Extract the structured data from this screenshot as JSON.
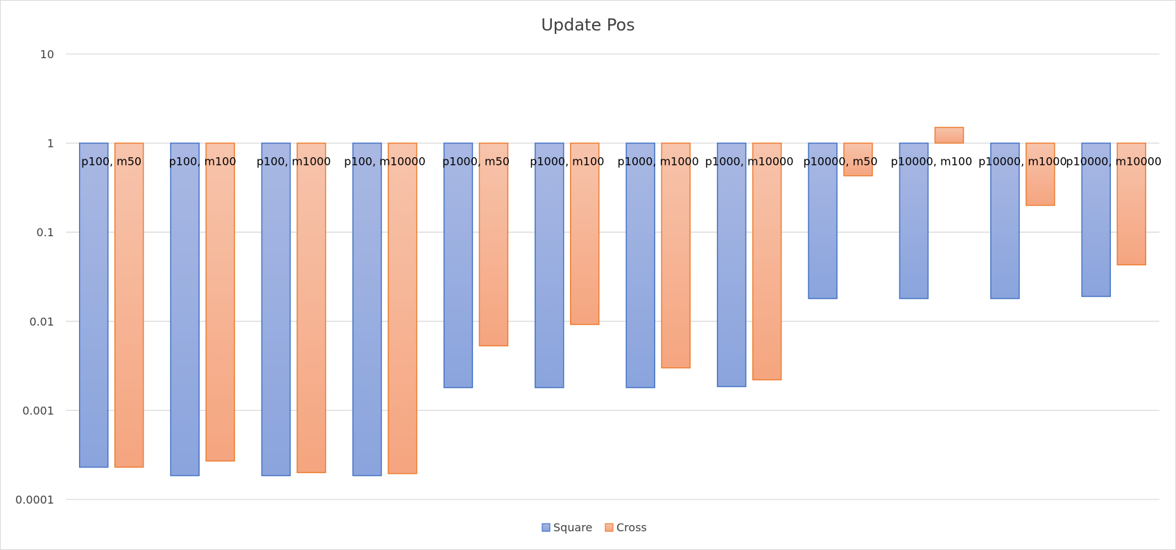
{
  "chart_data": {
    "type": "bar",
    "title": "Update Pos",
    "xlabel": "",
    "ylabel": "",
    "yscale": "log",
    "ylim": [
      0.0001,
      10
    ],
    "yticks": [
      "10",
      "1",
      "0.1",
      "0.01",
      "0.001",
      "0.0001"
    ],
    "grid": true,
    "legend_position": "bottom",
    "categories": [
      "p100, m50",
      "p100, m100",
      "p100, m1000",
      "p100, m10000",
      "p1000, m50",
      "p1000, m100",
      "p1000, m1000",
      "p1000, m10000",
      "p10000, m50",
      "p10000, m100",
      "p10000, m1000",
      "p10000, m10000"
    ],
    "series": [
      {
        "name": "Square",
        "color": "#4472c4",
        "fill_top": "#a9b8e3",
        "fill_bottom": "#8aa4dd",
        "values": [
          0.00023,
          0.000185,
          0.000185,
          0.000185,
          0.0018,
          0.0018,
          0.0018,
          0.00185,
          0.018,
          0.018,
          0.018,
          0.019
        ]
      },
      {
        "name": "Cross",
        "color": "#ed7d31",
        "fill_top": "#f7c4ac",
        "fill_bottom": "#f5a57f",
        "values": [
          0.00023,
          0.00027,
          0.0002,
          0.000195,
          0.0053,
          0.0092,
          0.003,
          0.0022,
          0.43,
          1.5,
          0.2,
          0.043
        ]
      }
    ]
  }
}
